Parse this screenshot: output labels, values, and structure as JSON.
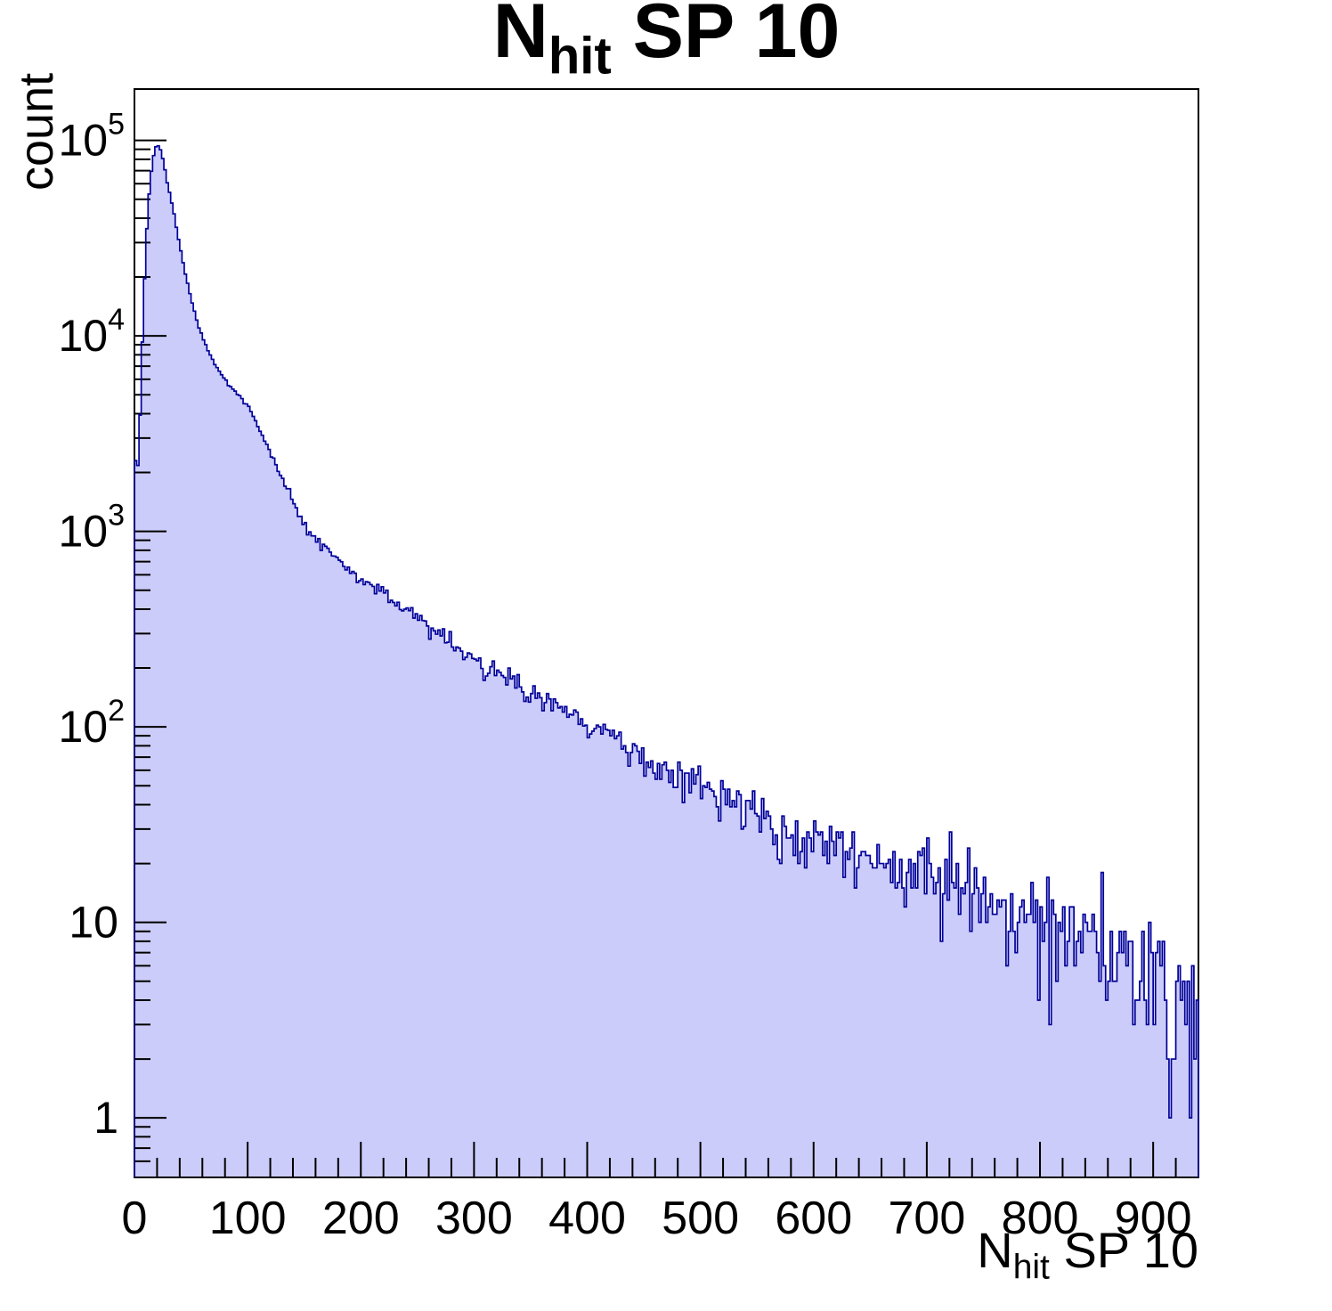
{
  "title": {
    "prefix": "N",
    "sub": "hit",
    "rest": " SP 10"
  },
  "x_axis": {
    "title_prefix": "N",
    "title_sub": "hit",
    "title_rest": " SP 10",
    "tick_values": [
      0,
      100,
      200,
      300,
      400,
      500,
      600,
      700,
      800,
      900
    ],
    "minor_step": 20
  },
  "y_axis": {
    "title": "count",
    "ticks": [
      {
        "base": "1",
        "exp": "",
        "value": 1
      },
      {
        "base": "10",
        "exp": "",
        "value": 10
      },
      {
        "base": "10",
        "exp": "2",
        "value": 100
      },
      {
        "base": "10",
        "exp": "3",
        "value": 1000
      },
      {
        "base": "10",
        "exp": "4",
        "value": 10000
      },
      {
        "base": "10",
        "exp": "5",
        "value": 100000
      }
    ]
  },
  "colors": {
    "fill": "#ccccfa",
    "line": "#000099",
    "frame": "#000000",
    "text": "#000000",
    "background": "#ffffff"
  },
  "chart_data": {
    "type": "bar",
    "subtype": "histogram-log-y",
    "title": "N_hit SP 10",
    "xlabel": "N_hit SP 10",
    "ylabel": "count",
    "xlim": [
      0,
      940
    ],
    "ylim": [
      0.496,
      183000
    ],
    "yscale": "log",
    "grid": false,
    "legend": false,
    "bin_width": 2,
    "x_anchor": [
      0,
      2,
      4,
      6,
      8,
      10,
      12,
      14,
      16,
      18,
      20,
      22,
      24,
      26,
      28,
      31,
      34,
      37,
      40,
      44,
      48,
      52,
      56,
      61,
      66,
      72,
      80,
      90,
      100,
      110,
      120,
      130,
      140,
      150,
      160,
      170,
      180,
      190,
      200,
      215,
      230,
      245,
      260,
      275,
      290,
      305,
      320,
      340,
      360,
      380,
      404,
      430,
      455,
      480,
      500,
      520,
      545,
      570,
      600,
      630,
      660,
      690,
      720,
      750,
      780,
      810,
      840,
      870,
      900,
      920,
      940
    ],
    "count_anchor": [
      2900,
      1750,
      2600,
      6000,
      14000,
      28000,
      45000,
      62000,
      78000,
      90000,
      95000,
      93000,
      86000,
      76000,
      65000,
      54000,
      45000,
      36000,
      29000,
      22000,
      17500,
      14000,
      11500,
      9500,
      8200,
      7000,
      6000,
      5100,
      4400,
      3300,
      2500,
      1900,
      1400,
      1100,
      920,
      800,
      700,
      640,
      580,
      500,
      430,
      380,
      330,
      290,
      240,
      210,
      200,
      165,
      140,
      118,
      100,
      80,
      65,
      56,
      51,
      45,
      38,
      31,
      27,
      24,
      21,
      18,
      15,
      13,
      11,
      9.5,
      8,
      6.5,
      5,
      3.5,
      2.5
    ],
    "peak": {
      "x": 20,
      "count": 95000
    },
    "noise": "poisson",
    "seed": 9
  }
}
